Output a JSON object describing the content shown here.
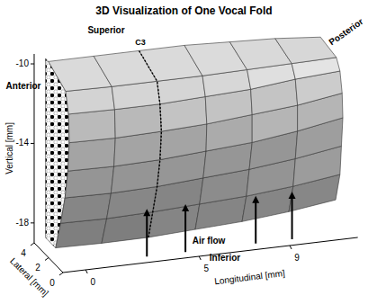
{
  "chart_data": {
    "type": "surface3d",
    "title": "3D Visualization of One Vocal Fold",
    "x_label": "Longitudinal [mm]",
    "y_label": "Lateral [mm]",
    "z_label": "Vertical [mm]",
    "xlim": [
      -1,
      12
    ],
    "xticks": [
      0,
      5,
      9
    ],
    "ylim": [
      0,
      4
    ],
    "yticks": [
      0,
      2,
      4
    ],
    "zlim": [
      -19,
      -9.5
    ],
    "zticks": [
      -10,
      -14,
      -18
    ],
    "annotations": [
      "Superior",
      "C3",
      "Anterior",
      "Posterior",
      "Air flow",
      "Inferior"
    ],
    "surface": {
      "x": [
        -0.5,
        1.5,
        3.5,
        5.5,
        7.5,
        9.5,
        11.5
      ],
      "y": [
        [
          2.6,
          2.5,
          2.3,
          2.1,
          1.9,
          1.7,
          1.5
        ],
        [
          1.9,
          1.8,
          1.7,
          1.5,
          1.3,
          1.1,
          0.9
        ],
        [
          1.3,
          1.2,
          1.1,
          1.0,
          0.9,
          0.8,
          0.7
        ],
        [
          0.9,
          0.8,
          0.7,
          0.6,
          0.5,
          0.5,
          0.5
        ],
        [
          0.7,
          0.6,
          0.5,
          0.5,
          0.5,
          0.5,
          0.6
        ],
        [
          0.8,
          0.7,
          0.7,
          0.7,
          0.7,
          0.8,
          0.9
        ],
        [
          1.2,
          1.1,
          1.1,
          1.1,
          1.2,
          1.3,
          1.4
        ],
        [
          3.6,
          3.6,
          3.6,
          3.6,
          3.6,
          3.6,
          3.6
        ]
      ],
      "z": [
        [
          -18.8,
          -18.8,
          -18.7,
          -18.5,
          -18.3,
          -18.0,
          -17.6
        ],
        [
          -17.3,
          -17.3,
          -17.2,
          -17.0,
          -16.8,
          -16.5,
          -16.1
        ],
        [
          -15.8,
          -15.8,
          -15.7,
          -15.5,
          -15.3,
          -15.0,
          -14.6
        ],
        [
          -14.3,
          -14.3,
          -14.2,
          -14.0,
          -13.8,
          -13.5,
          -13.1
        ],
        [
          -12.8,
          -12.8,
          -12.7,
          -12.6,
          -12.4,
          -12.2,
          -11.9
        ],
        [
          -11.4,
          -11.4,
          -11.4,
          -11.3,
          -11.2,
          -11.0,
          -10.9
        ],
        [
          -10.4,
          -10.4,
          -10.4,
          -10.4,
          -10.4,
          -10.4,
          -10.4
        ],
        [
          -9.8,
          -9.8,
          -9.8,
          -9.8,
          -9.9,
          -10.0,
          -10.2
        ]
      ]
    }
  }
}
